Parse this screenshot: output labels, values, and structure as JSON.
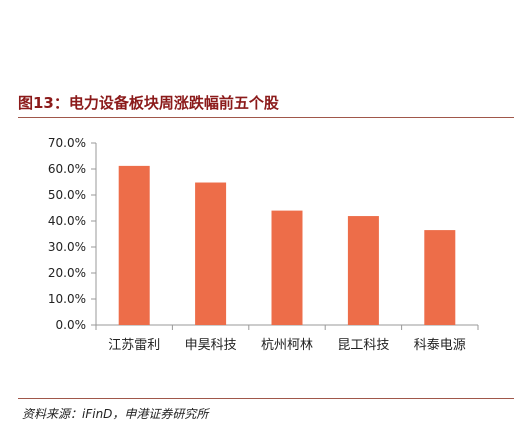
{
  "header": {
    "title": "图13：电力设备板块周涨跌幅前五个股"
  },
  "footer": {
    "source": "资料来源：iFinD，申港证券研究所"
  },
  "chart_data": {
    "type": "bar",
    "title": "图13：电力设备板块周涨跌幅前五个股",
    "categories": [
      "江苏雷利",
      "申昊科技",
      "杭州柯林",
      "昆工科技",
      "科泰电源"
    ],
    "values": [
      61.2,
      54.8,
      44.0,
      41.9,
      36.5
    ],
    "xlabel": "",
    "ylabel": "",
    "ylim": [
      0,
      70
    ],
    "yticks": [
      0,
      10,
      20,
      30,
      40,
      50,
      60,
      70
    ],
    "yticklabels": [
      "0.0%",
      "10.0%",
      "20.0%",
      "30.0%",
      "40.0%",
      "50.0%",
      "60.0%",
      "70.0%"
    ],
    "grid": false,
    "legend": "none",
    "bar_color": "#ED6D49",
    "axis_color": "#999999"
  }
}
